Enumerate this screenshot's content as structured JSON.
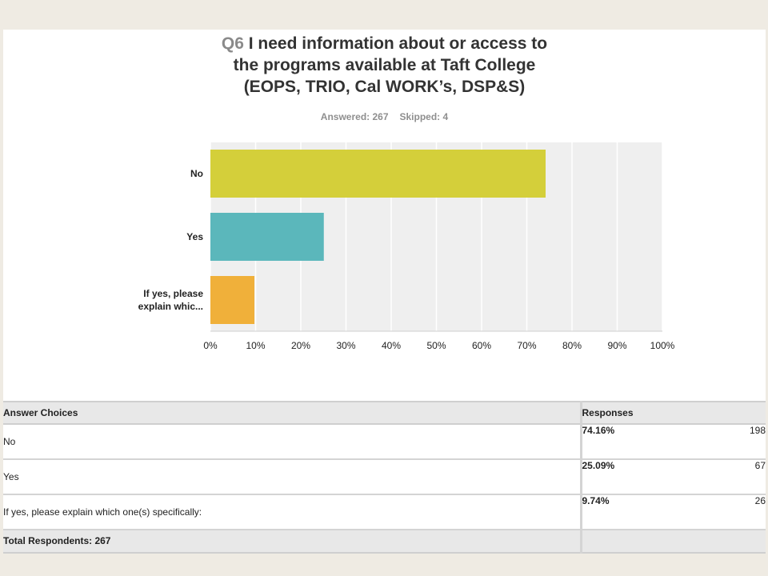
{
  "header": {
    "qnum": "Q6",
    "title_line1": "I need information about or access to",
    "title_line2": "the programs available at Taft College",
    "title_line3": "(EOPS, TRIO, Cal WORK’s, DSP&S)",
    "answered": "Answered: 267",
    "skipped": "Skipped: 4"
  },
  "colors": {
    "bar_no": "#d4cf3a",
    "bar_yes": "#5bb7bb",
    "bar_explain": "#f0b03a",
    "plot_bg": "#efefef",
    "grid": "#ffffff"
  },
  "chart_data": {
    "type": "bar",
    "orientation": "horizontal",
    "categories": [
      "No",
      "Yes",
      "If yes, please explain whic..."
    ],
    "values": [
      74.16,
      25.09,
      9.74
    ],
    "xlim": [
      0,
      100
    ],
    "xticks": [
      "0%",
      "10%",
      "20%",
      "30%",
      "40%",
      "50%",
      "60%",
      "70%",
      "80%",
      "90%",
      "100%"
    ],
    "grid": true
  },
  "table": {
    "col_choice": "Answer Choices",
    "col_responses": "Responses",
    "rows": [
      {
        "choice": "No",
        "pct": "74.16%",
        "count": "198"
      },
      {
        "choice": "Yes",
        "pct": "25.09%",
        "count": "67"
      },
      {
        "choice": "If yes, please explain which one(s) specifically:",
        "pct": "9.74%",
        "count": "26"
      }
    ],
    "total": "Total Respondents: 267"
  }
}
